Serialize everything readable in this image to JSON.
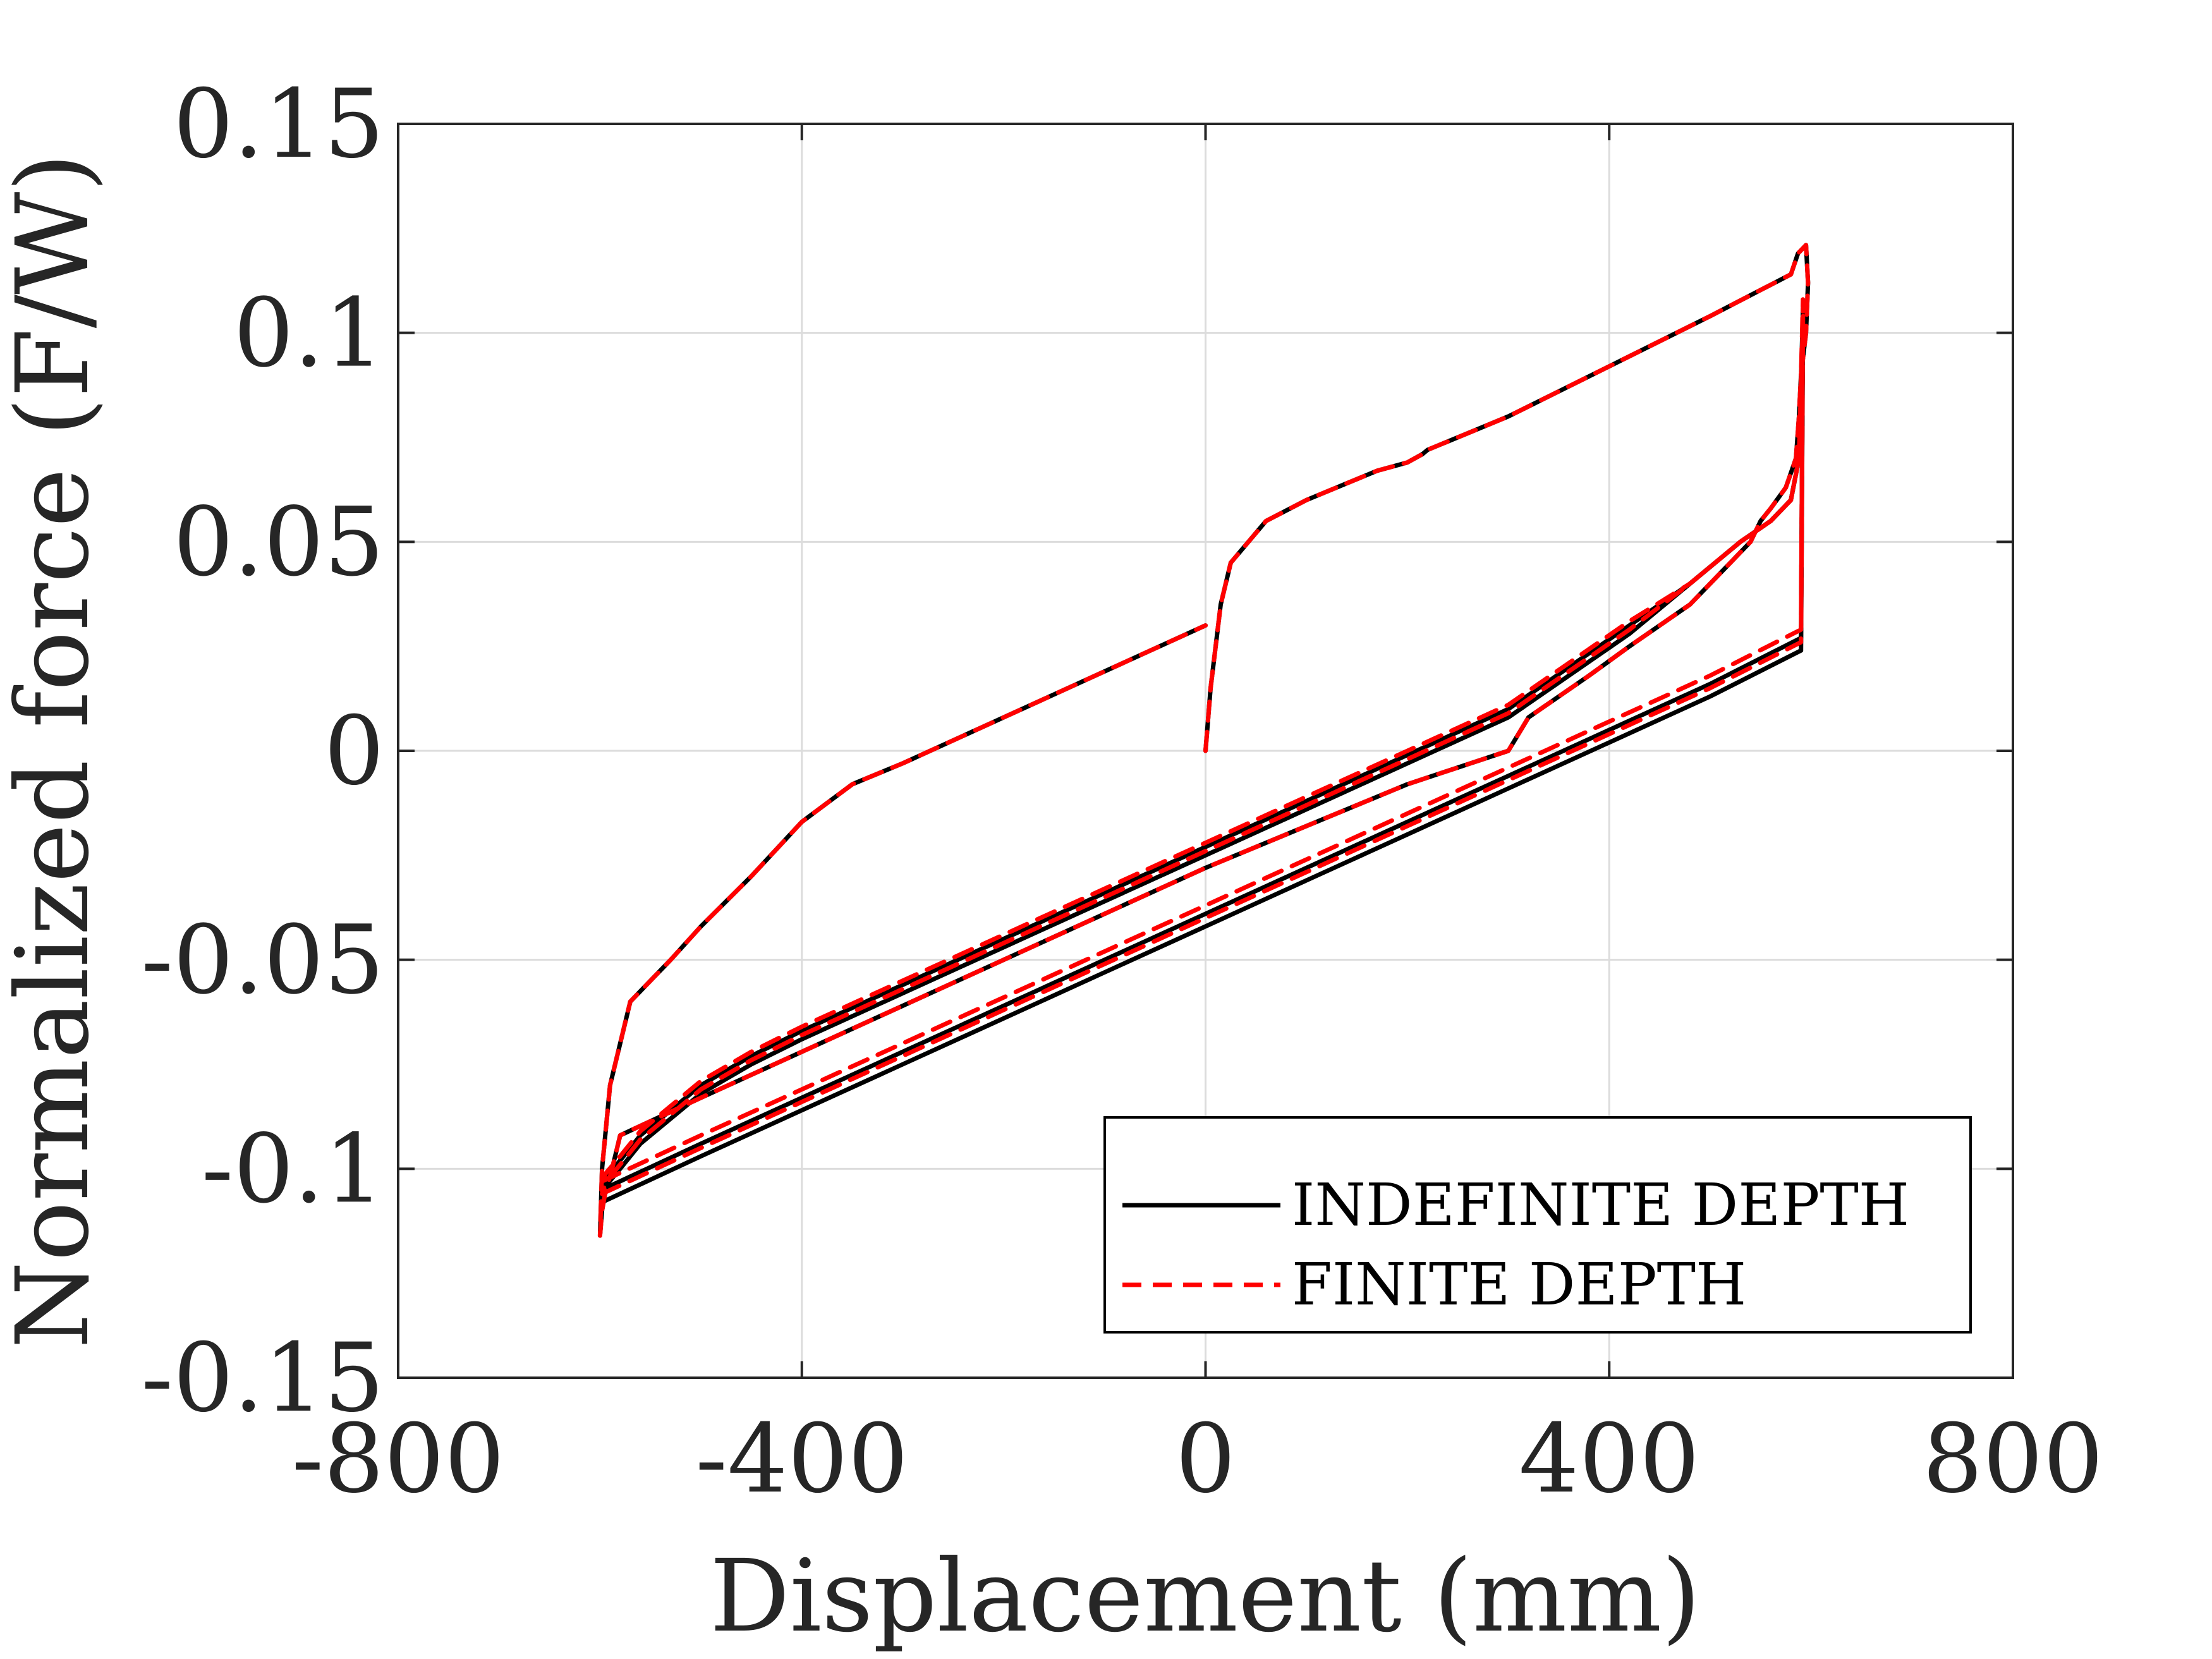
{
  "chart_data": {
    "type": "line",
    "title": "",
    "xlabel": "Displacement (mm)",
    "ylabel": "Normalized force (F/W)",
    "xlim": [
      -800,
      800
    ],
    "ylim": [
      -0.15,
      0.15
    ],
    "xticks": [
      -800,
      -400,
      0,
      400,
      800
    ],
    "xtick_labels": [
      "-800",
      "-400",
      "0",
      "400",
      "800"
    ],
    "yticks": [
      -0.15,
      -0.1,
      -0.05,
      0,
      0.05,
      0.1,
      0.15
    ],
    "ytick_labels": [
      "-0.15",
      "-0.1",
      "-0.05",
      "0",
      "0.05",
      "0.1",
      "0.15"
    ],
    "grid": true,
    "legend_position": "bottom-right",
    "colors": {
      "indefinite": "#000000",
      "finite": "#ff0000",
      "grid": "#dcdcdc",
      "axes": "#262626"
    },
    "series": [
      {
        "name": "INDEFINITE DEPTH",
        "style": "solid",
        "loops": [
          {
            "x": [
              0,
              5,
              15,
              25,
              60,
              100,
              150,
              170,
              200,
              215,
              220,
              250,
              300,
              400,
              500,
              580,
              587,
              595,
              597,
              595,
              590,
              588,
              585,
              575,
              560,
              550,
              540,
              520,
              480,
              420,
              380,
              320,
              300,
              200,
              100,
              0,
              -100,
              -200,
              -300,
              -400,
              -500,
              -580,
              -588,
              -595,
              -598,
              -600,
              -598,
              -590,
              -570,
              -530,
              -500,
              -450,
              -400,
              -350,
              -300,
              -200,
              -100,
              0
            ],
            "y": [
              0,
              0.015,
              0.035,
              0.045,
              0.055,
              0.06,
              0.065,
              0.067,
              0.069,
              0.071,
              0.072,
              0.075,
              0.08,
              0.092,
              0.104,
              0.114,
              0.119,
              0.121,
              0.112,
              0.1,
              0.09,
              0.08,
              0.07,
              0.063,
              0.058,
              0.055,
              0.05,
              0.045,
              0.035,
              0.025,
              0.018,
              0.008,
              0,
              -0.008,
              -0.018,
              -0.028,
              -0.039,
              -0.05,
              -0.061,
              -0.072,
              -0.083,
              -0.092,
              -0.1,
              -0.106,
              -0.11,
              -0.116,
              -0.1,
              -0.08,
              -0.06,
              -0.05,
              -0.042,
              -0.03,
              -0.017,
              -0.008,
              -0.003,
              0.008,
              0.019,
              0.03
            ]
          },
          {
            "x": [
              -598,
              -500,
              -400,
              -300,
              -200,
              -100,
              0,
              100,
              200,
              300,
              400,
              500,
              590,
              592,
              588,
              580,
              560,
              530,
              480,
              420,
              360,
              300,
              200,
              100,
              0,
              -100,
              -200,
              -300,
              -400,
              -450,
              -500,
              -560,
              -580,
              -594,
              -598
            ],
            "y": [
              -0.108,
              -0.097,
              -0.086,
              -0.075,
              -0.064,
              -0.053,
              -0.042,
              -0.031,
              -0.02,
              -0.009,
              0.002,
              0.013,
              0.024,
              0.1,
              0.07,
              0.06,
              0.055,
              0.05,
              0.04,
              0.028,
              0.018,
              0.008,
              -0.003,
              -0.014,
              -0.025,
              -0.036,
              -0.047,
              -0.058,
              -0.069,
              -0.075,
              -0.082,
              -0.094,
              -0.1,
              -0.104,
              -0.108
            ]
          },
          {
            "x": [
              -598,
              -500,
              -400,
              -300,
              -200,
              -100,
              0,
              100,
              200,
              300,
              400,
              500,
              590,
              592,
              588,
              580,
              560,
              530,
              480,
              420,
              360,
              300,
              200,
              100,
              0,
              -100,
              -200,
              -300,
              -400,
              -450,
              -500,
              -560,
              -580,
              -594,
              -598
            ],
            "y": [
              -0.105,
              -0.094,
              -0.083,
              -0.072,
              -0.061,
              -0.05,
              -0.039,
              -0.028,
              -0.017,
              -0.006,
              0.005,
              0.016,
              0.027,
              0.106,
              0.07,
              0.06,
              0.055,
              0.05,
              0.04,
              0.03,
              0.02,
              0.01,
              -0.001,
              -0.012,
              -0.023,
              -0.034,
              -0.045,
              -0.056,
              -0.067,
              -0.073,
              -0.08,
              -0.092,
              -0.098,
              -0.102,
              -0.105
            ]
          }
        ]
      },
      {
        "name": "FINITE DEPTH",
        "style": "dashed",
        "loops": [
          {
            "x": [
              0,
              5,
              15,
              25,
              60,
              100,
              150,
              170,
              200,
              215,
              220,
              250,
              300,
              400,
              500,
              580,
              587,
              595,
              597,
              595,
              590,
              588,
              585,
              575,
              560,
              550,
              540,
              520,
              480,
              420,
              380,
              320,
              300,
              200,
              100,
              0,
              -100,
              -200,
              -300,
              -400,
              -500,
              -580,
              -588,
              -595,
              -598,
              -600,
              -598,
              -590,
              -570,
              -530,
              -500,
              -450,
              -400,
              -350,
              -300,
              -200,
              -100,
              0
            ],
            "y": [
              0,
              0.015,
              0.035,
              0.045,
              0.055,
              0.06,
              0.065,
              0.067,
              0.069,
              0.071,
              0.072,
              0.075,
              0.08,
              0.092,
              0.104,
              0.114,
              0.119,
              0.121,
              0.112,
              0.1,
              0.09,
              0.08,
              0.07,
              0.063,
              0.058,
              0.055,
              0.05,
              0.045,
              0.035,
              0.025,
              0.018,
              0.008,
              0,
              -0.008,
              -0.018,
              -0.028,
              -0.039,
              -0.05,
              -0.061,
              -0.072,
              -0.083,
              -0.092,
              -0.1,
              -0.106,
              -0.11,
              -0.116,
              -0.1,
              -0.08,
              -0.06,
              -0.05,
              -0.042,
              -0.03,
              -0.017,
              -0.008,
              -0.003,
              0.008,
              0.019,
              0.03
            ]
          },
          {
            "x": [
              -598,
              -500,
              -400,
              -300,
              -200,
              -100,
              0,
              100,
              200,
              300,
              400,
              500,
              590,
              592,
              588,
              580,
              560,
              530,
              480,
              420,
              360,
              300,
              200,
              100,
              0,
              -100,
              -200,
              -300,
              -400,
              -450,
              -500,
              -560,
              -580,
              -594,
              -598
            ],
            "y": [
              -0.106,
              -0.095,
              -0.084,
              -0.073,
              -0.062,
              -0.051,
              -0.04,
              -0.029,
              -0.018,
              -0.007,
              0.004,
              0.015,
              0.026,
              0.104,
              0.07,
              0.06,
              0.055,
              0.05,
              0.04,
              0.029,
              0.019,
              0.009,
              -0.002,
              -0.013,
              -0.024,
              -0.035,
              -0.046,
              -0.057,
              -0.068,
              -0.074,
              -0.081,
              -0.093,
              -0.099,
              -0.103,
              -0.106
            ]
          },
          {
            "x": [
              -598,
              -500,
              -400,
              -300,
              -200,
              -100,
              0,
              100,
              200,
              300,
              400,
              500,
              590,
              592,
              588,
              580,
              560,
              530,
              480,
              420,
              360,
              300,
              200,
              100,
              0,
              -100,
              -200,
              -300,
              -400,
              -450,
              -500,
              -560,
              -580,
              -594,
              -598
            ],
            "y": [
              -0.103,
              -0.092,
              -0.081,
              -0.07,
              -0.059,
              -0.048,
              -0.037,
              -0.026,
              -0.015,
              -0.004,
              0.007,
              0.018,
              0.029,
              0.108,
              0.07,
              0.06,
              0.055,
              0.05,
              0.04,
              0.031,
              0.021,
              0.011,
              0,
              -0.011,
              -0.022,
              -0.033,
              -0.044,
              -0.055,
              -0.066,
              -0.072,
              -0.079,
              -0.091,
              -0.097,
              -0.101,
              -0.103
            ]
          }
        ]
      }
    ]
  }
}
